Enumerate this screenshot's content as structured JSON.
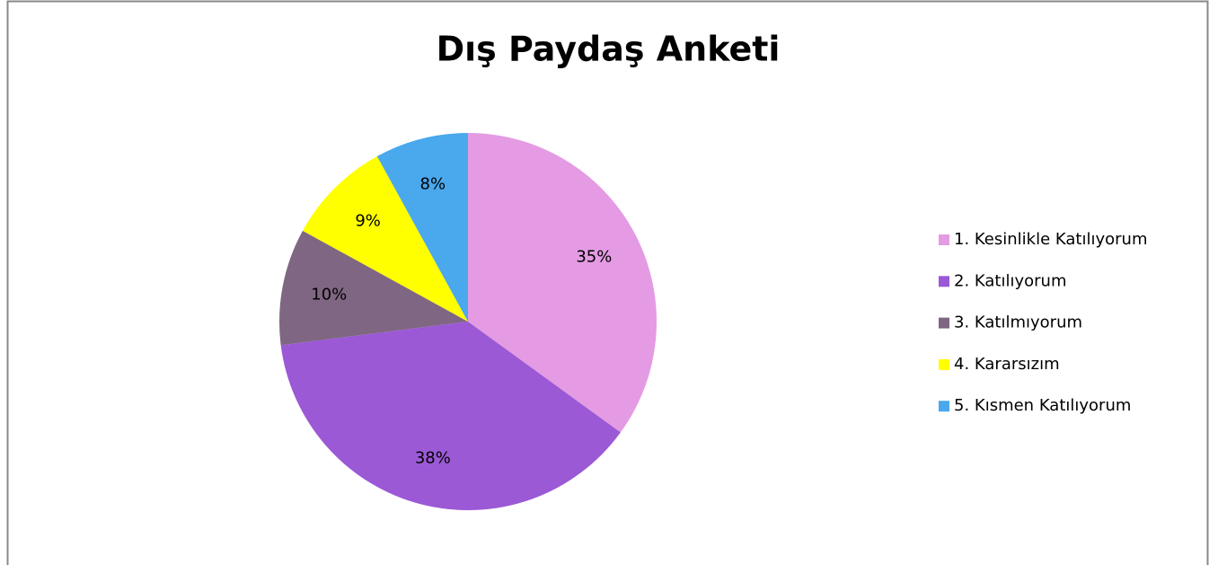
{
  "chart_data": {
    "type": "pie",
    "title": "Dış Paydaş Anketi",
    "categories": [
      "1. Kesinlikle Katılıyorum",
      "2. Katılıyorum",
      "3. Katılmıyorum",
      "4. Kararsızım",
      "5. Kısmen Katılıyorum"
    ],
    "values": [
      35,
      38,
      10,
      9,
      8
    ],
    "value_labels": [
      "35%",
      "38%",
      "10%",
      "9%",
      "8%"
    ],
    "colors": [
      "#e49be3",
      "#9b59d6",
      "#7f6682",
      "#ffff00",
      "#4aa8ec"
    ],
    "legend": "right"
  }
}
